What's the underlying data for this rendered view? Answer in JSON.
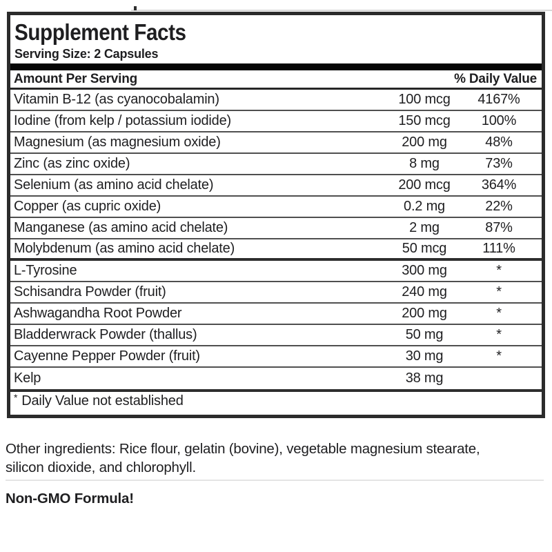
{
  "label": {
    "title": "Supplement Facts",
    "serving_size": "Serving Size: 2 Capsules",
    "columns": {
      "left": "Amount Per Serving",
      "right": "% Daily Value"
    },
    "rows": [
      {
        "name": "Vitamin B-12 (as cyanocobalamin)",
        "amount": "100 mcg",
        "dv": "4167%"
      },
      {
        "name": "Iodine (from kelp / potassium iodide)",
        "amount": "150 mcg",
        "dv": "100%"
      },
      {
        "name": "Magnesium (as magnesium oxide)",
        "amount": "200 mg",
        "dv": "48%"
      },
      {
        "name": "Zinc (as zinc oxide)",
        "amount": "8 mg",
        "dv": "73%"
      },
      {
        "name": "Selenium (as amino acid chelate)",
        "amount": "200 mcg",
        "dv": "364%"
      },
      {
        "name": "Copper (as cupric oxide)",
        "amount": "0.2 mg",
        "dv": "22%"
      },
      {
        "name": "Manganese (as amino acid chelate)",
        "amount": "2 mg",
        "dv": "87%"
      },
      {
        "name": "Molybdenum (as amino acid chelate)",
        "amount": "50 mcg",
        "dv": "111%"
      },
      {
        "name": "L-Tyrosine",
        "amount": "300 mg",
        "dv": "*"
      },
      {
        "name": "Schisandra Powder (fruit)",
        "amount": "240 mg",
        "dv": "*"
      },
      {
        "name": "Ashwagandha Root Powder",
        "amount": "200 mg",
        "dv": "*"
      },
      {
        "name": "Bladderwrack Powder (thallus)",
        "amount": "50 mg",
        "dv": "*"
      },
      {
        "name": "Cayenne Pepper Powder (fruit)",
        "amount": "30 mg",
        "dv": "*"
      },
      {
        "name": "Kelp",
        "amount": "38 mg",
        "dv": ""
      }
    ],
    "footnote_marker": "*",
    "footnote": "Daily Value not established"
  },
  "other_ingredients": "Other ingredients: Rice flour, gelatin (bovine), vegetable magnesium stearate, silicon dioxide, and chlorophyll.",
  "non_gmo": "Non-GMO Formula!",
  "colors": {
    "text": "#1e1e20",
    "border": "#2b2b2b",
    "bar": "#060606",
    "row_divider": "#4f4f4f",
    "group_divider": "#2e2e2e",
    "light_divider": "#e4e4e4"
  }
}
